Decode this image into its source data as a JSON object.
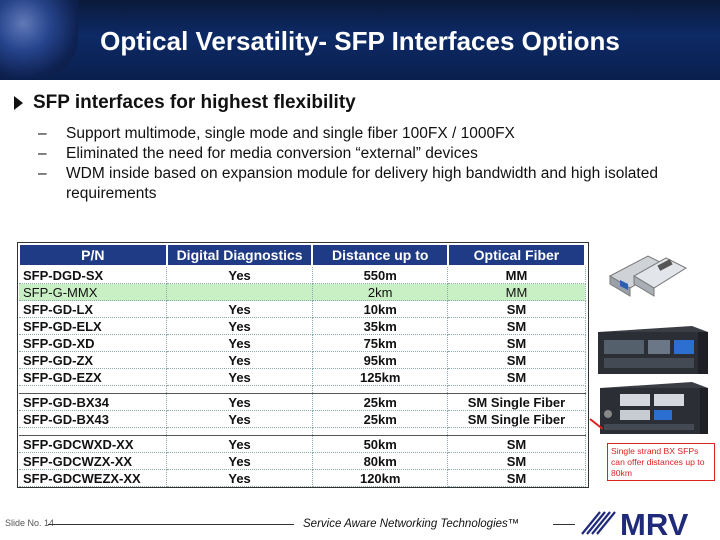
{
  "header": {
    "title": "Optical Versatility- SFP Interfaces Options"
  },
  "bullets": {
    "main": "SFP interfaces for highest flexibility",
    "dash": "–",
    "subs": [
      "Support multimode, single mode and single fiber 100FX / 1000FX",
      "Eliminated the need for media conversion “external” devices",
      "WDM inside based on expansion module for delivery high bandwidth and high isolated requirements"
    ]
  },
  "table": {
    "headers": [
      "P/N",
      "Digital Diagnostics",
      "Distance up to",
      "Optical Fiber"
    ],
    "rows": [
      [
        "SFP-DGD-SX",
        "Yes",
        "550m",
        "MM"
      ],
      [
        "SFP-G-MMX",
        "",
        "2km",
        "MM"
      ],
      [
        "SFP-GD-LX",
        "Yes",
        "10km",
        "SM"
      ],
      [
        "SFP-GD-ELX",
        "Yes",
        "35km",
        "SM"
      ],
      [
        "SFP-GD-XD",
        "Yes",
        "75km",
        "SM"
      ],
      [
        "SFP-GD-ZX",
        "Yes",
        "95km",
        "SM"
      ],
      [
        "SFP-GD-EZX",
        "Yes",
        "125km",
        "SM"
      ],
      [
        "SFP-GD-BX34",
        "Yes",
        "25km",
        "SM Single Fiber"
      ],
      [
        "SFP-GD-BX43",
        "Yes",
        "25km",
        "SM Single Fiber"
      ],
      [
        "SFP-GDCWXD-XX",
        "Yes",
        "50km",
        "SM"
      ],
      [
        "SFP-GDCWZX-XX",
        "Yes",
        "80km",
        "SM"
      ],
      [
        "SFP-GDCWEZX-XX",
        "Yes",
        "120km",
        "SM"
      ]
    ]
  },
  "callout": {
    "text": "Single strand BX SFPs can offer distances up to 80km"
  },
  "footer": {
    "slide_no": "Slide No. 14",
    "tagline": "Service Aware Networking Technologies™",
    "logo_text": "MRV"
  },
  "colors": {
    "title_bg": "#0d2a66",
    "table_header": "#1f3b86",
    "highlight_row": "#c9f0c4",
    "callout": "#dd2222"
  }
}
